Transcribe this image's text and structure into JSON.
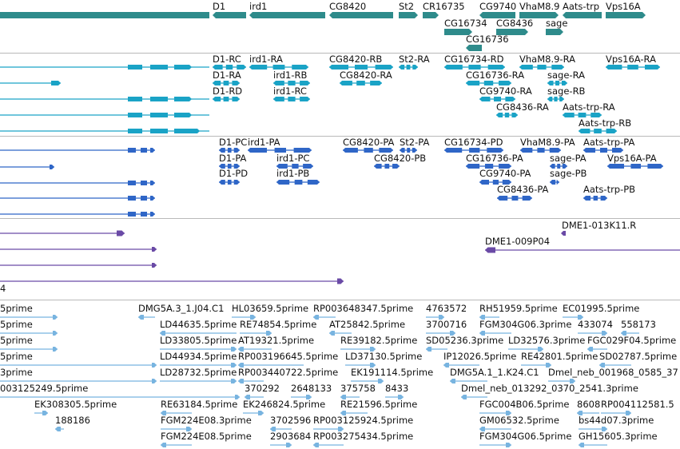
{
  "tracks": {
    "genes": {
      "feature_color": "#2e8b8b",
      "labels": [
        "D1",
        "ird1",
        "CG8420",
        "St2",
        "CR16735",
        "CG9740",
        "VhaM8.9",
        "Aats-trp",
        "Vps16A",
        "CG16734",
        "CG8436",
        "sage",
        "CG16736"
      ]
    },
    "transcripts_cyan": {
      "feature_color": "#1aa3c6",
      "labels": [
        "D1-RC",
        "ird1-RA",
        "CG8420-RB",
        "St2-RA",
        "CG16734-RD",
        "VhaM8.9-RA",
        "Vps16A-RA",
        "D1-RA",
        "ird1-RB",
        "CG8420-RA",
        "CG16736-RA",
        "sage-RA",
        "D1-RD",
        "ird1-RC",
        "CG9740-RA",
        "sage-RB",
        "CG8436-RA",
        "Aats-trp-RA",
        "Aats-trp-RB"
      ]
    },
    "proteins_blue": {
      "feature_color": "#2f66c7",
      "labels": [
        "D1-PC",
        "ird1-PA",
        "CG8420-PA",
        "St2-PA",
        "CG16734-PD",
        "VhaM8.9-PA",
        "Aats-trp-PA",
        "D1-PA",
        "ird1-PC",
        "CG8420-PB",
        "CG16736-PA",
        "sage-PA",
        "Vps16A-PA",
        "D1-PD",
        "ird1-PB",
        "CG9740-PA",
        "sage-PB",
        "CG8436-PA",
        "Aats-trp-PB"
      ]
    },
    "clones_purple": {
      "feature_color": "#6a4aa6",
      "labels": [
        "DME1-013K11.R",
        "DME1-009P04",
        "4"
      ]
    },
    "ests_lightblue": {
      "feature_color": "#78b4e0",
      "labels": [
        "5prime",
        "DMG5A.3_1.J04.C1",
        "HL03659.5prime",
        "RP003648347.5prime",
        "4763572",
        "RH51959.5prime",
        "EC01995.5prime",
        "5prime",
        "LD44635.5prime",
        "RE74854.5prime",
        "AT25842.5prime",
        "3700716",
        "FGM304G06.3prime",
        "433074",
        "558173",
        "5prime",
        "LD33805.5prime",
        "AT19321.5prime",
        "RE39182.5prime",
        "SD05236.3prime",
        "LD32576.3prime",
        "FGC029F04.5prime",
        "5prime",
        "LD44934.5prime",
        "RP003196645.5prime",
        "LD37130.5prime",
        "IP12026.5prime",
        "RE42801.5prime",
        "SD02787.5prime",
        "3prime",
        "LD28732.5prime",
        "RP003440722.5prime",
        "EK191114.5prime",
        "DMG5A.1_1.K24.C1",
        "Dmel_neb_001968_0585_37",
        "003125249.5prime",
        "370292",
        "2648133",
        "375758",
        "8433",
        "Dmel_neb_013292_0370_2541.3prime",
        "EK308305.5prime",
        "RE63184.5prime",
        "EK246824.5prime",
        "RE21596.5prime",
        "FGC004B06.5prime",
        "8608",
        "RP004112581.5",
        "188186",
        "FGM224E08.3prime",
        "3702596",
        "RP003125924.5prime",
        "GM06532.5prime",
        "bs44d07.3prime",
        "FGM224E08.5prime",
        "2903684",
        "RP003275434.5prime",
        "FGM304G06.5prime",
        "GH15605.3prime"
      ]
    }
  }
}
